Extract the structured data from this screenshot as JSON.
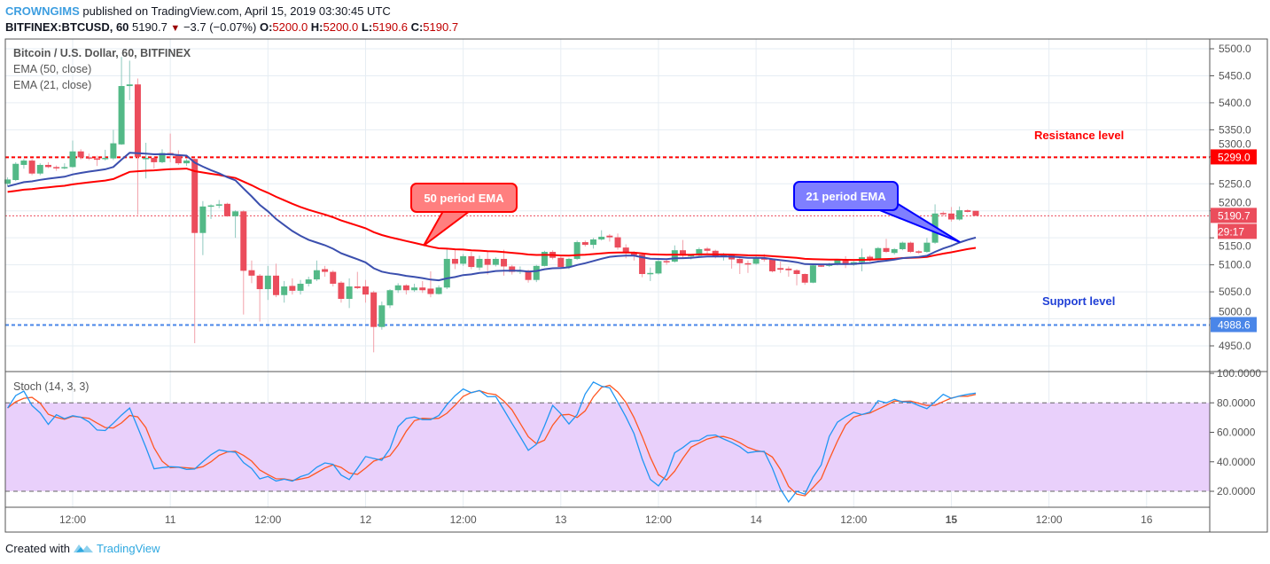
{
  "header": {
    "author": "CROWNGIMS",
    "published": "published on TradingView.com, April 15, 2019 03:30:45 UTC",
    "symbol": "BITFINEX:BTCUSD, 60",
    "last": "5190.7",
    "change": "−3.7 (−0.07%)",
    "o_label": "O:",
    "o": "5200.0",
    "h_label": "H:",
    "h": "5200.0",
    "l_label": "L:",
    "l": "5190.6",
    "c_label": "C:",
    "c": "5190.7"
  },
  "legend": {
    "title": "Bitcoin / U.S. Dollar, 60, BITFINEX",
    "ema50": "EMA (50, close)",
    "ema21": "EMA (21, close)",
    "stoch": "Stoch (14, 3, 3)"
  },
  "annotations": {
    "resistance": "Resistance level",
    "support": "Support level",
    "ema50_callout": "50 period EMA",
    "ema21_callout": "21 period EMA"
  },
  "footer": {
    "created_with": "Created with",
    "brand": "TradingView"
  },
  "colors": {
    "up": "#53b987",
    "down": "#eb4d5c",
    "ema50": "#ff0000",
    "ema21": "#3b4fae",
    "stoch_k": "#2196f3",
    "stoch_d": "#ff5722",
    "stoch_band": "#e9d0fb",
    "resistance": "#ff0000",
    "support": "#4a86e8",
    "author": "#3d9ee0"
  },
  "chart_data": {
    "type": "candlestick",
    "interval": "60",
    "price_axis": {
      "ticks": [
        "4950.0",
        "5000.0",
        "5050.0",
        "5100.0",
        "5150.0",
        "5200.0",
        "5250.0",
        "5300.0",
        "5350.0",
        "5400.0",
        "5450.0",
        "5500.0"
      ],
      "range": [
        4920,
        5520
      ]
    },
    "time_axis": {
      "ticks": [
        "12:00",
        "11",
        "12:00",
        "12",
        "12:00",
        "13",
        "12:00",
        "14",
        "12:00",
        "15",
        "12:00",
        "16"
      ]
    },
    "price_labels": {
      "resistance": "5299.0",
      "last": "5190.7",
      "countdown": "29:17",
      "support": "4988.6"
    },
    "levels": {
      "resistance": 5299.0,
      "support": 4988.6,
      "last": 5190.7
    },
    "ema_21": {
      "start": 5244
    },
    "ema_50": {
      "start": 5234
    },
    "stoch_axis": {
      "ticks": [
        "20.0000",
        "40.0000",
        "60.0000",
        "80.0000",
        "100.0000"
      ],
      "upper": 80,
      "lower": 20
    },
    "candles_columns": [
      "time",
      "open",
      "high",
      "low",
      "close"
    ],
    "candles": [
      [
        "10 04:00",
        5250,
        5262,
        5245,
        5258
      ],
      [
        "10 05:00",
        5257,
        5290,
        5255,
        5287
      ],
      [
        "10 06:00",
        5285,
        5296,
        5278,
        5293
      ],
      [
        "10 07:00",
        5293,
        5296,
        5266,
        5269
      ],
      [
        "10 08:00",
        5269,
        5288,
        5266,
        5285
      ],
      [
        "10 09:00",
        5285,
        5290,
        5279,
        5281
      ],
      [
        "10 10:00",
        5281,
        5284,
        5274,
        5279
      ],
      [
        "10 11:00",
        5279,
        5288,
        5277,
        5281
      ],
      [
        "10 12:00",
        5281,
        5330,
        5280,
        5310
      ],
      [
        "10 13:00",
        5310,
        5314,
        5295,
        5299
      ],
      [
        "10 14:00",
        5299,
        5306,
        5294,
        5297
      ],
      [
        "10 15:00",
        5297,
        5302,
        5283,
        5296
      ],
      [
        "10 16:00",
        5296,
        5313,
        5293,
        5298
      ],
      [
        "10 17:00",
        5297,
        5350,
        5294,
        5325
      ],
      [
        "10 18:00",
        5323,
        5485,
        5322,
        5431
      ],
      [
        "10 19:00",
        5431,
        5478,
        5405,
        5434
      ],
      [
        "10 20:00",
        5434,
        5445,
        5193,
        5300
      ],
      [
        "10 21:00",
        5297,
        5326,
        5260,
        5298
      ],
      [
        "10 22:00",
        5298,
        5300,
        5278,
        5290
      ],
      [
        "10 23:00",
        5290,
        5314,
        5288,
        5307
      ],
      [
        "11 00:00",
        5307,
        5343,
        5290,
        5303
      ],
      [
        "11 01:00",
        5303,
        5312,
        5285,
        5288
      ],
      [
        "11 02:00",
        5288,
        5296,
        5283,
        5293
      ],
      [
        "11 03:00",
        5296,
        5298,
        4955,
        5159
      ],
      [
        "11 04:00",
        5159,
        5218,
        5118,
        5208
      ],
      [
        "11 05:00",
        5208,
        5212,
        5185,
        5210
      ],
      [
        "11 06:00",
        5210,
        5220,
        5205,
        5212
      ],
      [
        "11 07:00",
        5213,
        5215,
        5189,
        5190
      ],
      [
        "11 08:00",
        5190,
        5201,
        5150,
        5199
      ],
      [
        "11 09:00",
        5199,
        5201,
        5008,
        5089
      ],
      [
        "11 10:00",
        5090,
        5108,
        5066,
        5080
      ],
      [
        "11 11:00",
        5080,
        5083,
        4995,
        5055
      ],
      [
        "11 12:00",
        5055,
        5098,
        5035,
        5080
      ],
      [
        "11 13:00",
        5080,
        5102,
        5040,
        5044
      ],
      [
        "11 14:00",
        5044,
        5070,
        5030,
        5060
      ],
      [
        "11 15:00",
        5061,
        5075,
        5045,
        5052
      ],
      [
        "11 16:00",
        5052,
        5072,
        5045,
        5065
      ],
      [
        "11 17:00",
        5065,
        5078,
        5060,
        5073
      ],
      [
        "11 18:00",
        5073,
        5108,
        5070,
        5090
      ],
      [
        "11 19:00",
        5092,
        5098,
        5078,
        5087
      ],
      [
        "11 20:00",
        5087,
        5090,
        5060,
        5065
      ],
      [
        "11 21:00",
        5067,
        5070,
        5030,
        5037
      ],
      [
        "11 22:00",
        5037,
        5075,
        5020,
        5060
      ],
      [
        "11 23:00",
        5060,
        5087,
        5055,
        5057
      ],
      [
        "12 00:00",
        5060,
        5072,
        5030,
        5045
      ],
      [
        "12 01:00",
        5049,
        5052,
        4938,
        4985
      ],
      [
        "12 02:00",
        4985,
        5032,
        4980,
        5025
      ],
      [
        "12 03:00",
        5025,
        5055,
        5020,
        5053
      ],
      [
        "12 04:00",
        5053,
        5066,
        5048,
        5062
      ],
      [
        "12 05:00",
        5062,
        5064,
        5045,
        5053
      ],
      [
        "12 06:00",
        5053,
        5065,
        5050,
        5058
      ],
      [
        "12 07:00",
        5058,
        5070,
        5048,
        5053
      ],
      [
        "12 08:00",
        5056,
        5088,
        5040,
        5046
      ],
      [
        "12 09:00",
        5046,
        5062,
        5045,
        5058
      ],
      [
        "12 10:00",
        5058,
        5130,
        5055,
        5111
      ],
      [
        "12 11:00",
        5111,
        5128,
        5092,
        5102
      ],
      [
        "12 12:00",
        5102,
        5120,
        5098,
        5116
      ],
      [
        "12 13:00",
        5116,
        5124,
        5092,
        5096
      ],
      [
        "12 14:00",
        5095,
        5117,
        5090,
        5111
      ],
      [
        "12 15:00",
        5111,
        5124,
        5082,
        5100
      ],
      [
        "12 16:00",
        5100,
        5114,
        5097,
        5111
      ],
      [
        "12 17:00",
        5111,
        5128,
        5080,
        5097
      ],
      [
        "12 18:00",
        5097,
        5100,
        5082,
        5087
      ],
      [
        "12 19:00",
        5087,
        5097,
        5083,
        5090
      ],
      [
        "12 20:00",
        5089,
        5091,
        5067,
        5072
      ],
      [
        "12 21:00",
        5072,
        5100,
        5068,
        5098
      ],
      [
        "12 22:00",
        5098,
        5126,
        5097,
        5124
      ],
      [
        "12 23:00",
        5124,
        5127,
        5110,
        5113
      ],
      [
        "13 00:00",
        5113,
        5115,
        5093,
        5096
      ],
      [
        "13 01:00",
        5096,
        5113,
        5092,
        5111
      ],
      [
        "13 02:00",
        5111,
        5145,
        5109,
        5142
      ],
      [
        "13 03:00",
        5142,
        5145,
        5134,
        5137
      ],
      [
        "13 04:00",
        5137,
        5150,
        5130,
        5147
      ],
      [
        "13 05:00",
        5147,
        5164,
        5145,
        5152
      ],
      [
        "13 06:00",
        5154,
        5157,
        5143,
        5151
      ],
      [
        "13 07:00",
        5151,
        5158,
        5128,
        5132
      ],
      [
        "13 08:00",
        5132,
        5138,
        5112,
        5123
      ],
      [
        "13 09:00",
        5123,
        5125,
        5108,
        5118
      ],
      [
        "13 10:00",
        5119,
        5121,
        5077,
        5083
      ],
      [
        "13 11:00",
        5083,
        5095,
        5070,
        5085
      ],
      [
        "13 12:00",
        5084,
        5109,
        5082,
        5107
      ],
      [
        "13 13:00",
        5107,
        5110,
        5100,
        5106
      ],
      [
        "13 14:00",
        5106,
        5136,
        5104,
        5127
      ],
      [
        "13 15:00",
        5127,
        5146,
        5113,
        5117
      ],
      [
        "13 16:00",
        5116,
        5120,
        5110,
        5118
      ],
      [
        "13 17:00",
        5117,
        5132,
        5115,
        5129
      ],
      [
        "13 18:00",
        5130,
        5133,
        5120,
        5126
      ],
      [
        "13 19:00",
        5126,
        5128,
        5112,
        5116
      ],
      [
        "13 20:00",
        5115,
        5122,
        5108,
        5118
      ],
      [
        "13 21:00",
        5118,
        5120,
        5093,
        5110
      ],
      [
        "13 22:00",
        5111,
        5113,
        5083,
        5103
      ],
      [
        "13 23:00",
        5103,
        5108,
        5085,
        5102
      ],
      [
        "14 00:00",
        5102,
        5117,
        5100,
        5112
      ],
      [
        "14 01:00",
        5112,
        5120,
        5106,
        5110
      ],
      [
        "14 02:00",
        5110,
        5112,
        5086,
        5088
      ],
      [
        "14 03:00",
        5094,
        5106,
        5085,
        5091
      ],
      [
        "14 04:00",
        5093,
        5097,
        5078,
        5090
      ],
      [
        "14 05:00",
        5090,
        5092,
        5062,
        5083
      ],
      [
        "14 06:00",
        5083,
        5084,
        5063,
        5067
      ],
      [
        "14 07:00",
        5067,
        5101,
        5066,
        5099
      ],
      [
        "14 08:00",
        5099,
        5101,
        5096,
        5098
      ],
      [
        "14 09:00",
        5098,
        5104,
        5096,
        5101
      ],
      [
        "14 10:00",
        5101,
        5110,
        5099,
        5109
      ],
      [
        "14 11:00",
        5108,
        5116,
        5094,
        5100
      ],
      [
        "14 12:00",
        5100,
        5107,
        5098,
        5105
      ],
      [
        "14 13:00",
        5105,
        5130,
        5088,
        5114
      ],
      [
        "14 14:00",
        5115,
        5118,
        5106,
        5110
      ],
      [
        "14 15:00",
        5110,
        5133,
        5108,
        5131
      ],
      [
        "14 16:00",
        5131,
        5148,
        5122,
        5124
      ],
      [
        "14 17:00",
        5122,
        5131,
        5119,
        5129
      ],
      [
        "14 18:00",
        5129,
        5143,
        5127,
        5141
      ],
      [
        "14 19:00",
        5141,
        5143,
        5122,
        5124
      ],
      [
        "14 20:00",
        5125,
        5127,
        5120,
        5124
      ],
      [
        "14 21:00",
        5124,
        5150,
        5122,
        5141
      ],
      [
        "14 22:00",
        5141,
        5212,
        5139,
        5195
      ],
      [
        "14 23:00",
        5196,
        5199,
        5190,
        5194
      ],
      [
        "15 00:00",
        5195,
        5207,
        5180,
        5184
      ],
      [
        "15 01:00",
        5184,
        5208,
        5182,
        5201
      ],
      [
        "15 02:00",
        5201,
        5203,
        5197,
        5198
      ],
      [
        "15 03:00",
        5200,
        5200,
        5190.6,
        5190.7
      ]
    ]
  }
}
